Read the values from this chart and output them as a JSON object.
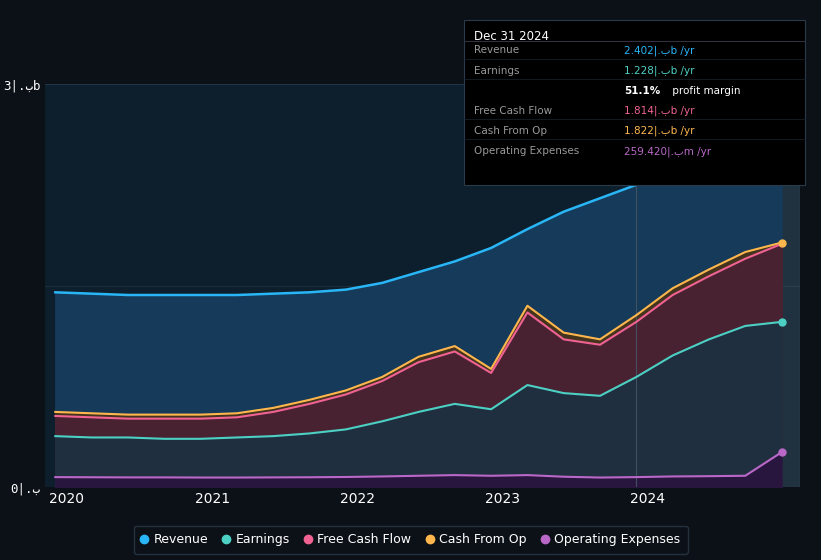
{
  "bg_color": "#0c1117",
  "plot_bg_color": "#0d1f2d",
  "series_colors": {
    "Revenue": "#29b6f6",
    "Earnings": "#4dd0c4",
    "FreeCashFlow": "#f06292",
    "CashFromOp": "#ffb74d",
    "OperatingExpenses": "#ba68c8"
  },
  "legend": [
    {
      "label": "Revenue",
      "color": "#29b6f6"
    },
    {
      "label": "Earnings",
      "color": "#4dd0c4"
    },
    {
      "label": "Free Cash Flow",
      "color": "#f06292"
    },
    {
      "label": "Cash From Op",
      "color": "#ffb74d"
    },
    {
      "label": "Operating Expenses",
      "color": "#ba68c8"
    }
  ],
  "x": [
    2019.92,
    2020.17,
    2020.42,
    2020.67,
    2020.92,
    2021.17,
    2021.42,
    2021.67,
    2021.92,
    2022.17,
    2022.42,
    2022.67,
    2022.92,
    2023.17,
    2023.42,
    2023.67,
    2023.92,
    2024.17,
    2024.42,
    2024.67,
    2024.92
  ],
  "Revenue": [
    1.45,
    1.44,
    1.43,
    1.43,
    1.43,
    1.43,
    1.44,
    1.45,
    1.47,
    1.52,
    1.6,
    1.68,
    1.78,
    1.92,
    2.05,
    2.15,
    2.25,
    2.32,
    2.36,
    2.39,
    2.4
  ],
  "CashFromOp": [
    0.56,
    0.55,
    0.54,
    0.54,
    0.54,
    0.55,
    0.59,
    0.65,
    0.72,
    0.82,
    0.97,
    1.05,
    0.88,
    1.35,
    1.15,
    1.1,
    1.28,
    1.48,
    1.62,
    1.75,
    1.82
  ],
  "FreeCashFlow": [
    0.53,
    0.52,
    0.51,
    0.51,
    0.51,
    0.52,
    0.56,
    0.62,
    0.69,
    0.79,
    0.93,
    1.01,
    0.85,
    1.3,
    1.1,
    1.06,
    1.23,
    1.43,
    1.57,
    1.7,
    1.81
  ],
  "Earnings": [
    0.38,
    0.37,
    0.37,
    0.36,
    0.36,
    0.37,
    0.38,
    0.4,
    0.43,
    0.49,
    0.56,
    0.62,
    0.58,
    0.76,
    0.7,
    0.68,
    0.82,
    0.98,
    1.1,
    1.2,
    1.23
  ],
  "OperatingExpenses": [
    0.075,
    0.074,
    0.073,
    0.073,
    0.072,
    0.072,
    0.073,
    0.074,
    0.076,
    0.08,
    0.085,
    0.09,
    0.085,
    0.09,
    0.078,
    0.072,
    0.075,
    0.08,
    0.082,
    0.085,
    0.26
  ],
  "ylim": [
    0,
    3.0
  ],
  "xlim": [
    2019.85,
    2025.05
  ],
  "xticks": [
    2020,
    2021,
    2022,
    2023,
    2024
  ],
  "x_labels": [
    "2020",
    "2021",
    "2022",
    "2023",
    "2024"
  ],
  "ytick_pos": [
    0,
    1.5,
    3.0
  ],
  "ytick_labels": [
    "0|.ب",
    "",
    "3|.بb"
  ],
  "vline_x": 2023.92,
  "tooltip_title": "Dec 31 2024",
  "tooltip_rows": [
    {
      "label": "Revenue",
      "value": "2.402|.بb /yr",
      "color": "#29b6f6"
    },
    {
      "label": "Earnings",
      "value": "1.228|.بb /yr",
      "color": "#4dd0c4"
    },
    {
      "label": "",
      "value": "51.1% profit margin",
      "color": "#ffffff"
    },
    {
      "label": "Free Cash Flow",
      "value": "1.814|.بb /yr",
      "color": "#f06292"
    },
    {
      "label": "Cash From Op",
      "value": "1.822|.بb /yr",
      "color": "#ffb74d"
    },
    {
      "label": "Operating Expenses",
      "value": "259.420|.بm /yr",
      "color": "#ba68c8"
    }
  ]
}
